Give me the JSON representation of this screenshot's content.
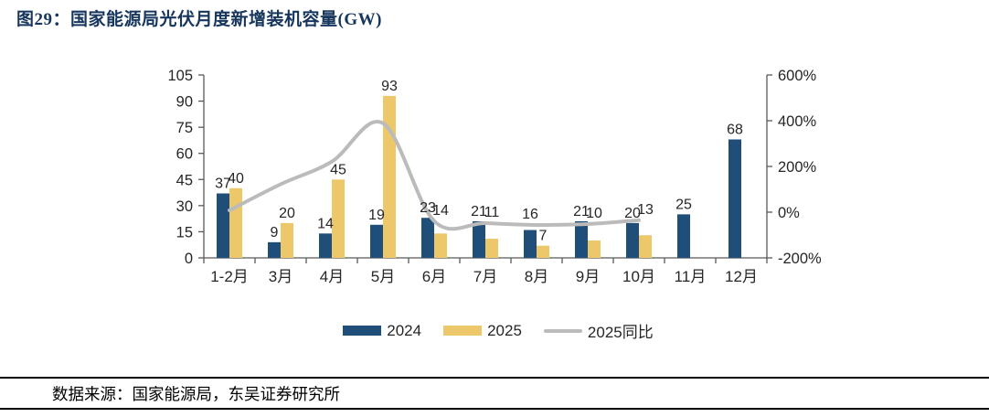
{
  "title": "图29：国家能源局光伏月度新增装机容量(GW)",
  "footer": {
    "source_text": "数据来源：国家能源局，东吴证券研究所"
  },
  "chart_data": {
    "type": "bar+line",
    "title": "国家能源局光伏月度新增装机容量(GW)",
    "categories": [
      "1-2月",
      "3月",
      "4月",
      "5月",
      "6月",
      "7月",
      "8月",
      "9月",
      "10月",
      "11月",
      "12月"
    ],
    "series": [
      {
        "name": "2024",
        "type": "bar",
        "axis": "left",
        "color": "#1F4E79",
        "values": [
          37,
          9,
          14,
          19,
          23,
          21,
          16,
          21,
          20,
          25,
          68
        ]
      },
      {
        "name": "2025",
        "type": "bar",
        "axis": "left",
        "color": "#EDC86B",
        "values": [
          40,
          20,
          45,
          93,
          14,
          11,
          7,
          10,
          13,
          null,
          null
        ]
      },
      {
        "name": "2025同比",
        "type": "line",
        "axis": "right",
        "color": "#BBBBBB",
        "unit": "%",
        "values": [
          8,
          122,
          221,
          389,
          -39,
          -48,
          -56,
          -52,
          -35,
          null,
          null
        ]
      }
    ],
    "left_axis": {
      "min": 0,
      "max": 105,
      "step": 15,
      "ticks": [
        0,
        15,
        30,
        45,
        60,
        75,
        90,
        105
      ]
    },
    "right_axis": {
      "min": -200,
      "max": 600,
      "step": 200,
      "unit": "%",
      "ticks": [
        "-200%",
        "0%",
        "200%",
        "400%",
        "600%"
      ]
    },
    "legend_position": "bottom",
    "grid": false,
    "colors": {
      "bar_2024": "#1F4E79",
      "bar_2025": "#EDC86B",
      "yoy_line": "#BBBBBB",
      "title_navy": "#17365D"
    }
  }
}
